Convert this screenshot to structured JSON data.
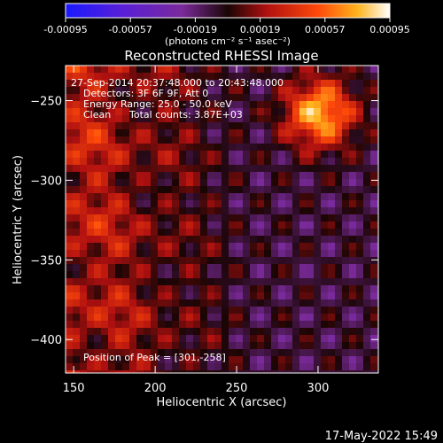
{
  "chart_data": {
    "type": "heatmap",
    "title": "Reconstructed RHESSI Image",
    "xlabel": "Heliocentric X (arcsec)",
    "ylabel": "Heliocentric Y (arcsec)",
    "xlim": [
      145,
      337
    ],
    "ylim": [
      -421,
      -228
    ],
    "x_ticks": [
      150,
      200,
      250,
      300
    ],
    "y_ticks": [
      -400,
      -350,
      -300,
      -250
    ],
    "colorbar": {
      "range": [
        -0.00095,
        0.00095
      ],
      "ticks": [
        "-0.00095",
        "-0.00057",
        "-0.00019",
        "0.00019",
        "0.00057",
        "0.00095"
      ],
      "unit_label": "(photons cm⁻² s⁻¹ asec⁻²)",
      "colormap": "purple-black-red-orange-yellow-white"
    },
    "annotations": {
      "time": "27-Sep-2014 20:37:48.000 to 20:43:48.000",
      "detectors": "Detectors: 3F 6F 9F, Att 0",
      "energy": "Energy Range: 25.0 - 50.0 keV",
      "clean": "Clean",
      "counts": "Total counts: 3.87E+03",
      "peak": "Position of Peak = [301,-258]"
    },
    "peak_position": [
      301,
      -258
    ]
  },
  "footer": {
    "date": "17-May-2022 15:49"
  }
}
